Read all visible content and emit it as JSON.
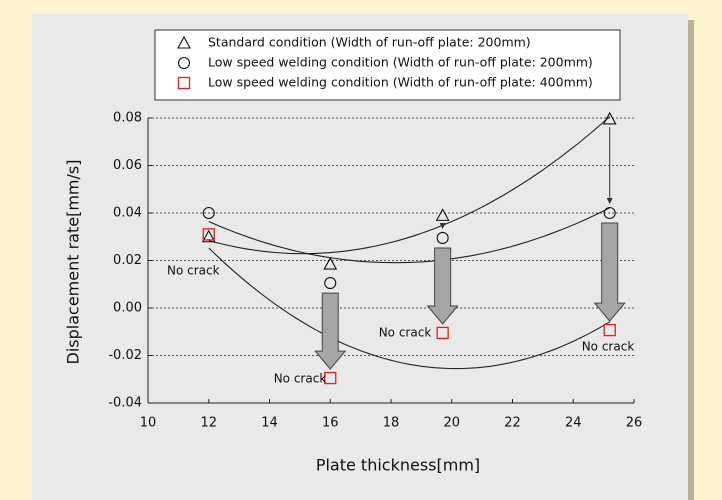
{
  "chart_data": {
    "type": "scatter",
    "xlabel": "Plate thickness[mm]",
    "ylabel": "Displacement rate[mm/s]",
    "xlim": [
      10,
      26
    ],
    "xticks": [
      10,
      12,
      14,
      16,
      18,
      20,
      22,
      24,
      26
    ],
    "ylim": [
      -0.04,
      0.08
    ],
    "yticks": [
      -0.04,
      -0.02,
      {
        "value": 0,
        "label": "0.00"
      },
      0.02,
      0.04,
      0.06,
      0.08
    ],
    "grid": true,
    "series": [
      {
        "name": "Standard condition (Width of run-off plate: 200mm)",
        "marker": "triangle",
        "color": "#111111",
        "x": [
          12,
          16,
          19.7,
          25.2
        ],
        "values": [
          0.03,
          0.0185,
          0.039,
          0.0796
        ]
      },
      {
        "name": "Low speed welding condition (Width of run-off plate: 200mm)",
        "marker": "circle",
        "color": "#111111",
        "x": [
          12,
          16,
          19.7,
          25.2
        ],
        "values": [
          0.04,
          0.0105,
          0.0295,
          0.04
        ]
      },
      {
        "name": "Low speed welding condition (Width of run-off plate: 400mm)",
        "marker": "square",
        "color": "#e0201b",
        "x": [
          12,
          16,
          19.7,
          25.2
        ],
        "values": [
          0.031,
          -0.0295,
          -0.0105,
          -0.0093
        ]
      }
    ],
    "annotations": [
      "No crack",
      "No crack",
      "No crack",
      "No crack"
    ]
  }
}
